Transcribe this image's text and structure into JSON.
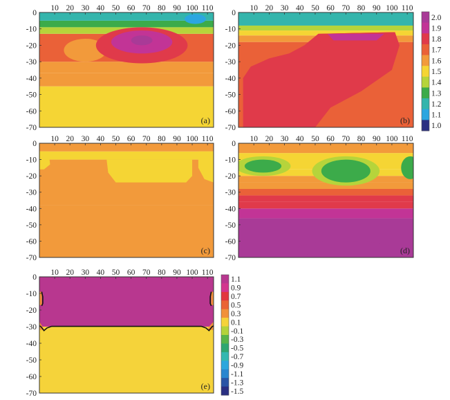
{
  "chart_data": [
    {
      "type": "heatmap",
      "panel_label": "(a)",
      "x_ticks": [
        "10",
        "20",
        "30",
        "40",
        "50",
        "60",
        "70",
        "80",
        "90",
        "100",
        "110"
      ],
      "y_ticks": [
        "0",
        "-10",
        "-20",
        "-30",
        "-40",
        "-50",
        "-60",
        "-70"
      ],
      "xlim": [
        0,
        114
      ],
      "ylim": [
        -70,
        0
      ],
      "bands": [
        {
          "ymin": -70,
          "ymax": -45,
          "value": 1.45
        },
        {
          "ymin": -45,
          "ymax": -37,
          "value": 1.55
        },
        {
          "ymin": -37,
          "ymax": -30,
          "value": 1.62
        },
        {
          "ymin": -30,
          "ymax": -13,
          "value": 1.7
        },
        {
          "ymin": -13,
          "ymax": -9,
          "value": 1.4
        },
        {
          "ymin": -9,
          "ymax": -5,
          "value": 1.3
        },
        {
          "ymin": -5,
          "ymax": 0,
          "value": 1.2
        }
      ],
      "blobs": [
        {
          "cx": 30,
          "cy": -23,
          "rx": 14,
          "ry": 7,
          "value": 1.6
        },
        {
          "cx": 67,
          "cy": -20,
          "rx": 30,
          "ry": 11,
          "value": 1.75
        },
        {
          "cx": 67,
          "cy": -19,
          "rx": 25,
          "ry": 9,
          "value": 1.8
        },
        {
          "cx": 67,
          "cy": -18,
          "rx": 20,
          "ry": 7,
          "value": 1.85
        },
        {
          "cx": 67,
          "cy": -18,
          "rx": 14,
          "ry": 5,
          "value": 1.9
        },
        {
          "cx": 67,
          "cy": -17,
          "rx": 7,
          "ry": 3,
          "value": 1.95
        },
        {
          "cx": 102,
          "cy": -4,
          "rx": 7,
          "ry": 3,
          "value": 1.05
        }
      ]
    },
    {
      "type": "heatmap",
      "panel_label": "(b)",
      "x_ticks": [
        "10",
        "20",
        "30",
        "40",
        "50",
        "60",
        "70",
        "80",
        "90",
        "100",
        "110"
      ],
      "y_ticks": [
        "0",
        "-10",
        "-20",
        "-30",
        "-40",
        "-50",
        "-60",
        "-70"
      ],
      "xlim": [
        0,
        114
      ],
      "ylim": [
        -70,
        0
      ],
      "bands": [
        {
          "ymin": -70,
          "ymax": -18,
          "value": 1.7
        },
        {
          "ymin": -18,
          "ymax": -14,
          "value": 1.6
        },
        {
          "ymin": -14,
          "ymax": -11,
          "value": 1.5
        },
        {
          "ymin": -11,
          "ymax": -8,
          "value": 1.35
        },
        {
          "ymin": -8,
          "ymax": 0,
          "value": 1.2
        }
      ],
      "polys": [
        {
          "value": 1.78,
          "points": [
            [
              3,
              -70
            ],
            [
              3,
              -40
            ],
            [
              8,
              -33
            ],
            [
              20,
              -28
            ],
            [
              33,
              -25
            ],
            [
              43,
              -20
            ],
            [
              52,
              -13
            ],
            [
              102,
              -12
            ],
            [
              105,
              -20
            ],
            [
              100,
              -35
            ],
            [
              80,
              -48
            ],
            [
              60,
              -58
            ],
            [
              50,
              -70
            ]
          ]
        },
        {
          "value": 1.83,
          "points": [
            [
              52,
              -13
            ],
            [
              102,
              -12
            ],
            [
              103,
              -16
            ],
            [
              98,
              -24
            ],
            [
              90,
              -27
            ],
            [
              60,
              -27
            ],
            [
              54,
              -20
            ]
          ]
        },
        {
          "value": 1.88,
          "points": [
            [
              58,
              -13
            ],
            [
              95,
              -13
            ],
            [
              90,
              -17
            ],
            [
              62,
              -17
            ]
          ]
        }
      ]
    },
    {
      "type": "heatmap",
      "panel_label": "(c)",
      "x_ticks": [
        "10",
        "20",
        "30",
        "40",
        "50",
        "60",
        "70",
        "80",
        "90",
        "100",
        "110"
      ],
      "y_ticks": [
        "0",
        "-10",
        "-20",
        "-30",
        "-40",
        "-50",
        "-60",
        "-70"
      ],
      "xlim": [
        0,
        114
      ],
      "ylim": [
        -70,
        0
      ],
      "bands": [
        {
          "ymin": -70,
          "ymax": -38,
          "value": 1.6
        },
        {
          "ymin": -38,
          "ymax": -10,
          "value": 1.55
        },
        {
          "ymin": -10,
          "ymax": -5,
          "value": 1.45
        },
        {
          "ymin": -5,
          "ymax": 0,
          "value": 1.55
        }
      ],
      "polys": [
        {
          "value": 1.45,
          "points": [
            [
              44,
              -10
            ],
            [
              100,
              -10
            ],
            [
              100,
              -20
            ],
            [
              96,
              -24
            ],
            [
              50,
              -24
            ],
            [
              45,
              -18
            ]
          ]
        },
        {
          "value": 1.45,
          "points": [
            [
              104,
              -5
            ],
            [
              114,
              -5
            ],
            [
              114,
              -24
            ],
            [
              108,
              -22
            ],
            [
              104,
              -15
            ]
          ]
        },
        {
          "value": 1.45,
          "points": [
            [
              0,
              -5
            ],
            [
              6,
              -5
            ],
            [
              7,
              -13
            ],
            [
              3,
              -16
            ],
            [
              0,
              -16
            ]
          ]
        }
      ]
    },
    {
      "type": "heatmap",
      "panel_label": "(d)",
      "x_ticks": [
        "10",
        "20",
        "30",
        "40",
        "50",
        "60",
        "70",
        "80",
        "90",
        "100",
        "110"
      ],
      "y_ticks": [
        "0",
        "-10",
        "-20",
        "-30",
        "-40",
        "-50",
        "-60",
        "-70"
      ],
      "xlim": [
        0,
        114
      ],
      "ylim": [
        -70,
        0
      ],
      "bands": [
        {
          "ymin": -70,
          "ymax": -46,
          "value": 1.95
        },
        {
          "ymin": -46,
          "ymax": -40,
          "value": 1.85
        },
        {
          "ymin": -40,
          "ymax": -36,
          "value": 1.8
        },
        {
          "ymin": -36,
          "ymax": -32,
          "value": 1.75
        },
        {
          "ymin": -32,
          "ymax": -28,
          "value": 1.7
        },
        {
          "ymin": -28,
          "ymax": -24,
          "value": 1.6
        },
        {
          "ymin": -24,
          "ymax": -20,
          "value": 1.55
        },
        {
          "ymin": -20,
          "ymax": -16,
          "value": 1.5
        },
        {
          "ymin": -16,
          "ymax": -6,
          "value": 1.45
        },
        {
          "ymin": -6,
          "ymax": 0,
          "value": 1.55
        }
      ],
      "blobs": [
        {
          "cx": 16,
          "cy": -14,
          "rx": 18,
          "ry": 6,
          "value": 1.38
        },
        {
          "cx": 16,
          "cy": -14,
          "rx": 12,
          "ry": 4,
          "value": 1.3
        },
        {
          "cx": 70,
          "cy": -17,
          "rx": 22,
          "ry": 9,
          "value": 1.38
        },
        {
          "cx": 70,
          "cy": -17,
          "rx": 16,
          "ry": 7,
          "value": 1.3
        },
        {
          "cx": 112,
          "cy": -15,
          "rx": 6,
          "ry": 7,
          "value": 1.3
        },
        {
          "cx": 70,
          "cy": -65,
          "rx": 32,
          "ry": 5,
          "value": 2.0
        }
      ]
    },
    {
      "type": "heatmap",
      "panel_label": "(e)",
      "x_ticks": [
        "10",
        "20",
        "30",
        "40",
        "50",
        "60",
        "70",
        "80",
        "90",
        "100",
        "110"
      ],
      "y_ticks": [
        "0",
        "-10",
        "-20",
        "-30",
        "-40",
        "-50",
        "-60",
        "-70"
      ],
      "xlim": [
        0,
        114
      ],
      "ylim": [
        -70,
        0
      ],
      "bands": [
        {
          "ymin": -70,
          "ymax": -30,
          "value": 0.0
        },
        {
          "ymin": -30,
          "ymax": 0,
          "value": 1.1
        }
      ],
      "polys": [
        {
          "value": 0.2,
          "points": [
            [
              0,
              -9
            ],
            [
              1.6,
              -9
            ],
            [
              1.6,
              -17
            ],
            [
              0,
              -17
            ]
          ]
        },
        {
          "value": 0.2,
          "points": [
            [
              112.4,
              -9
            ],
            [
              114,
              -9
            ],
            [
              114,
              -17
            ],
            [
              112.4,
              -17
            ]
          ]
        },
        {
          "value": 0.2,
          "points": [
            [
              0,
              -27
            ],
            [
              2,
              -30
            ],
            [
              3,
              -32
            ],
            [
              0,
              -32
            ]
          ]
        },
        {
          "value": 0.2,
          "points": [
            [
              114,
              -27
            ],
            [
              111,
              -30
            ],
            [
              110,
              -32
            ],
            [
              114,
              -32
            ]
          ]
        }
      ],
      "contours": [
        {
          "points": [
            [
              0,
              -29.5
            ],
            [
              1,
              -30
            ],
            [
              3,
              -32.4
            ],
            [
              5,
              -30.8
            ],
            [
              8,
              -29.8
            ],
            [
              106,
              -29.8
            ],
            [
              109,
              -30.8
            ],
            [
              111,
              -32.4
            ],
            [
              113,
              -30
            ],
            [
              114,
              -29.5
            ]
          ]
        },
        {
          "points": [
            [
              1.5,
              -9
            ],
            [
              2.2,
              -12
            ],
            [
              2.2,
              -16
            ],
            [
              1.5,
              -17.5
            ]
          ]
        },
        {
          "points": [
            [
              112.5,
              -9
            ],
            [
              111.8,
              -12
            ],
            [
              111.8,
              -16
            ],
            [
              112.5,
              -17.5
            ]
          ]
        }
      ]
    }
  ],
  "colorbars": [
    {
      "ticks": [
        "2.0",
        "1.9",
        "1.8",
        "1.7",
        "1.6",
        "1.5",
        "1.4",
        "1.3",
        "1.2",
        "1.1",
        "1.0"
      ],
      "colors": [
        "#a93a97",
        "#c23496",
        "#e03a4a",
        "#ea6138",
        "#f29a3b",
        "#f5d534",
        "#b6d43b",
        "#3cab4a",
        "#34b5ac",
        "#2ca6e0",
        "#2a2f82"
      ]
    },
    {
      "ticks": [
        "1.1",
        "0.9",
        "0.7",
        "0.5",
        "0.3",
        "0.1",
        "-0.1",
        "-0.3",
        "-0.5",
        "-0.7",
        "-0.9",
        "-1.1",
        "-1.3",
        "-1.5"
      ],
      "colors": [
        "#b8378f",
        "#d3358e",
        "#e2373f",
        "#ea6335",
        "#f1913a",
        "#f5d33a",
        "#b3d33b",
        "#58b449",
        "#2fa670",
        "#33b8b0",
        "#2ca7dd",
        "#2a86cf",
        "#2a55a6",
        "#2a2f82"
      ]
    }
  ]
}
